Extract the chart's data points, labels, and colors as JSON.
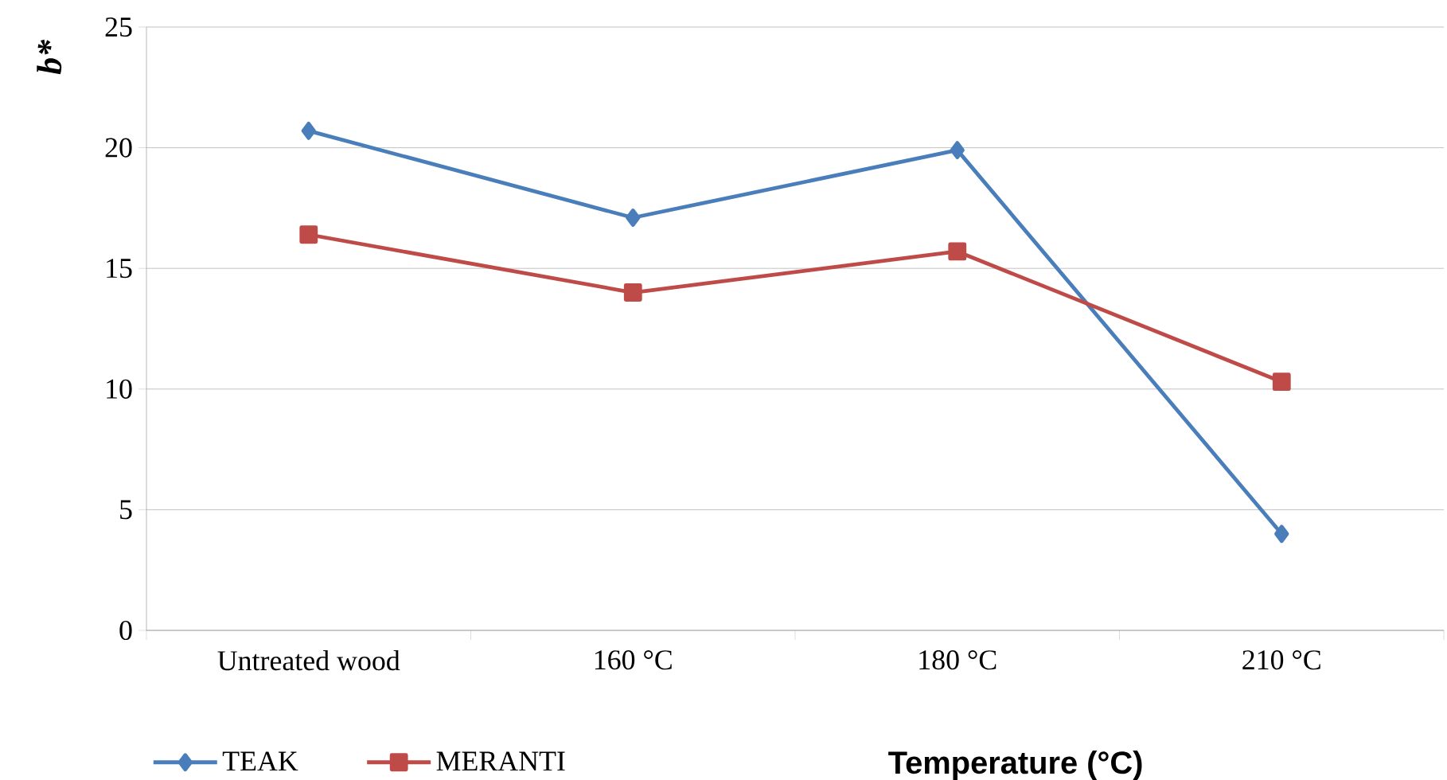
{
  "chart_data": {
    "type": "line",
    "xlabel": "Temperature (°C)",
    "ylabel": "b*",
    "categories": [
      "Untreated wood",
      "160 °C",
      "180 °C",
      "210 °C"
    ],
    "series": [
      {
        "name": "TEAK",
        "color": "#4a7ebb",
        "marker": "diamond",
        "values": [
          20.7,
          17.1,
          19.9,
          4.0
        ]
      },
      {
        "name": "MERANTI",
        "color": "#be4b48",
        "marker": "square",
        "values": [
          16.4,
          14.0,
          15.7,
          10.3
        ]
      }
    ],
    "ylim": [
      0,
      25
    ],
    "yticks": [
      0,
      5,
      10,
      15,
      20,
      25
    ],
    "grid": "y",
    "legend": "bottom"
  }
}
